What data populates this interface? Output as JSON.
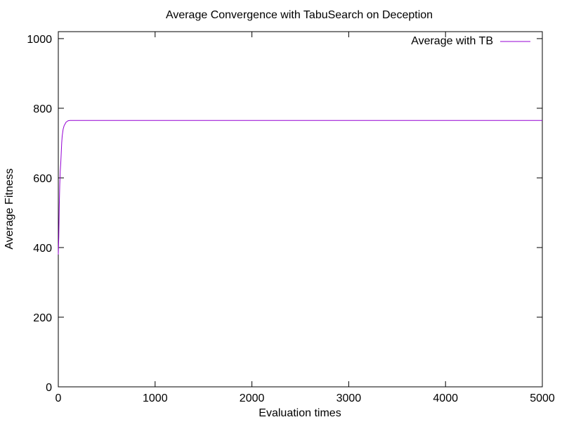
{
  "chart_data": {
    "type": "line",
    "title": "Average Convergence with TabuSearch on Deception",
    "xlabel": "Evaluation times",
    "ylabel": "Average Fitness",
    "xlim": [
      0,
      5000
    ],
    "ylim": [
      0,
      1020
    ],
    "x_ticks": [
      0,
      1000,
      2000,
      3000,
      4000,
      5000
    ],
    "y_ticks": [
      0,
      200,
      400,
      600,
      800,
      1000
    ],
    "x_tick_labels": [
      "0",
      "1000",
      "2000",
      "3000",
      "4000",
      "5000"
    ],
    "y_tick_labels": [
      "0",
      "200",
      "400",
      "600",
      "800",
      "1000"
    ],
    "grid": false,
    "legend_position": "top-right",
    "series": [
      {
        "name": "Average with TB",
        "color": "#9400d3",
        "points": [
          [
            0,
            380
          ],
          [
            5,
            430
          ],
          [
            10,
            520
          ],
          [
            15,
            580
          ],
          [
            20,
            620
          ],
          [
            25,
            640
          ],
          [
            30,
            670
          ],
          [
            35,
            700
          ],
          [
            40,
            720
          ],
          [
            45,
            730
          ],
          [
            50,
            740
          ],
          [
            60,
            750
          ],
          [
            70,
            755
          ],
          [
            80,
            760
          ],
          [
            90,
            762
          ],
          [
            100,
            764
          ],
          [
            120,
            765
          ],
          [
            150,
            765
          ],
          [
            200,
            765
          ],
          [
            500,
            765
          ],
          [
            1000,
            765
          ],
          [
            2000,
            765
          ],
          [
            3000,
            765
          ],
          [
            4000,
            765
          ],
          [
            5000,
            765
          ]
        ]
      }
    ]
  }
}
